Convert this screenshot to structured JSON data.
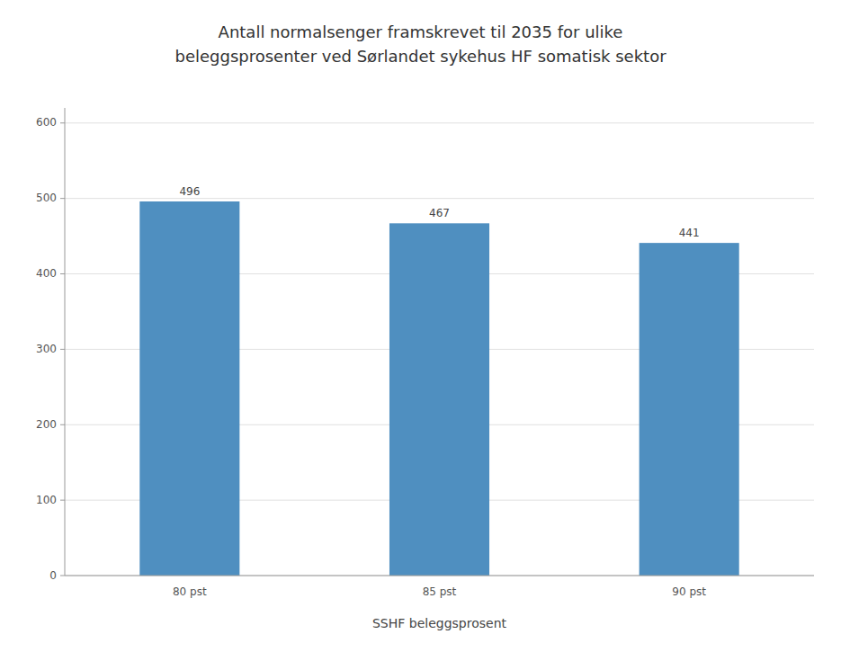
{
  "chart_data": {
    "type": "bar",
    "title": "Antall normalsenger framskrevet til 2035 for ulike\nbeleggsprosenter ved Sørlandet sykehus HF somatisk sektor",
    "x_label": "SSHF beleggsprosent",
    "categories": [
      "80 pst",
      "85 pst",
      "90 pst"
    ],
    "values": [
      496,
      467,
      441
    ],
    "color": "#4f8fc0",
    "ylim": [
      0,
      620
    ],
    "yticks": [
      0,
      100,
      200,
      300,
      400,
      500,
      600
    ],
    "grid": true,
    "data_labels": true
  }
}
